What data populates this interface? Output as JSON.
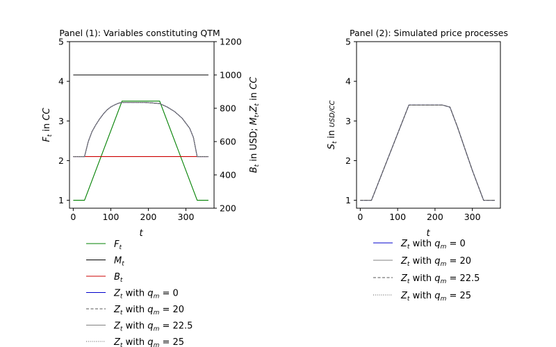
{
  "chart_data": [
    {
      "type": "line",
      "title": "Panel (1): Variables constituting QTM",
      "xlabel": "t",
      "ylabel": "F_t in CC",
      "ylabel_right": "B_t in USD; M_t,Z_t in CC",
      "xlim": [
        -10,
        375
      ],
      "ylim": [
        0.8,
        5
      ],
      "ylim_right": [
        200,
        1200
      ],
      "xticks": [
        "0",
        "100",
        "200",
        "300"
      ],
      "yticks": [
        "1",
        "2",
        "3",
        "4",
        "5"
      ],
      "yticks_right": [
        "200",
        "400",
        "600",
        "800",
        "1000",
        "1200"
      ],
      "series": [
        {
          "name": "F_t",
          "axis": "left",
          "color": "#008000",
          "style": "solid",
          "x": [
            0,
            30,
            130,
            230,
            330,
            360
          ],
          "y": [
            1,
            1,
            3.5,
            3.5,
            1,
            1
          ]
        },
        {
          "name": "M_t",
          "axis": "right",
          "color": "#000000",
          "style": "solid",
          "x": [
            0,
            360
          ],
          "y": [
            1000,
            1000
          ]
        },
        {
          "name": "B_t",
          "axis": "right",
          "color": "#cc0000",
          "style": "solid",
          "x": [
            0,
            360
          ],
          "y": [
            510,
            510
          ]
        },
        {
          "name": "Z_t with q_m = 0",
          "axis": "right",
          "color": "#0000cc",
          "style": "solid",
          "x": [
            0,
            30,
            40,
            50,
            60,
            70,
            80,
            90,
            100,
            110,
            120,
            130,
            150,
            170,
            190,
            210,
            230,
            250,
            270,
            290,
            310,
            320,
            330,
            360
          ],
          "y": [
            510,
            510,
            600,
            660,
            700,
            735,
            765,
            790,
            808,
            820,
            830,
            835,
            835,
            835,
            835,
            832,
            828,
            808,
            780,
            740,
            680,
            625,
            510,
            510
          ]
        },
        {
          "name": "Z_t with q_m = 20",
          "axis": "right",
          "color": "#555555",
          "style": "dashed",
          "x": [
            0,
            30,
            40,
            50,
            60,
            70,
            80,
            90,
            100,
            110,
            120,
            130,
            150,
            170,
            190,
            210,
            230,
            250,
            270,
            290,
            310,
            320,
            330,
            360
          ],
          "y": [
            510,
            510,
            600,
            660,
            700,
            735,
            765,
            790,
            808,
            820,
            830,
            835,
            835,
            835,
            835,
            832,
            828,
            808,
            780,
            740,
            680,
            625,
            510,
            510
          ]
        },
        {
          "name": "Z_t with q_m = 22.5",
          "axis": "right",
          "color": "#808080",
          "style": "solid",
          "x": [
            0,
            30,
            40,
            50,
            60,
            70,
            80,
            90,
            100,
            110,
            120,
            130,
            150,
            170,
            190,
            210,
            230,
            250,
            270,
            290,
            310,
            320,
            330,
            360
          ],
          "y": [
            510,
            510,
            600,
            660,
            700,
            735,
            765,
            790,
            808,
            820,
            830,
            835,
            835,
            835,
            835,
            832,
            828,
            808,
            780,
            740,
            680,
            625,
            510,
            510
          ]
        },
        {
          "name": "Z_t with q_m = 25",
          "axis": "right",
          "color": "#555555",
          "style": "dotted",
          "x": [
            0,
            30,
            40,
            50,
            60,
            70,
            80,
            90,
            100,
            110,
            120,
            130,
            150,
            170,
            190,
            210,
            230,
            250,
            270,
            290,
            310,
            320,
            330,
            360
          ],
          "y": [
            510,
            510,
            600,
            660,
            700,
            735,
            765,
            790,
            808,
            820,
            830,
            835,
            835,
            835,
            835,
            832,
            828,
            808,
            780,
            740,
            680,
            625,
            510,
            510
          ]
        }
      ],
      "legend": [
        "F_t",
        "M_t",
        "B_t",
        "Z_t with q_m = 0",
        "Z_t with q_m = 20",
        "Z_t with q_m = 22.5",
        "Z_t with q_m = 25"
      ],
      "legend_placement": "below"
    },
    {
      "type": "line",
      "title": "Panel (2): Simulated price processes",
      "xlabel": "t",
      "ylabel": "S_t in USD/CC",
      "xlim": [
        -10,
        375
      ],
      "ylim": [
        0.8,
        5
      ],
      "xticks": [
        "0",
        "100",
        "200",
        "300"
      ],
      "yticks": [
        "1",
        "2",
        "3",
        "4",
        "5"
      ],
      "series": [
        {
          "name": "Z_t with q_m = 0",
          "color": "#0000cc",
          "style": "solid",
          "x": [
            0,
            30,
            130,
            180,
            200,
            220,
            240,
            260,
            280,
            300,
            330,
            360
          ],
          "y": [
            1,
            1,
            3.4,
            3.4,
            3.4,
            3.4,
            3.35,
            2.85,
            2.3,
            1.75,
            1,
            1
          ]
        },
        {
          "name": "Z_t with q_m = 20",
          "color": "#808080",
          "style": "solid",
          "x": [
            0,
            30,
            130,
            180,
            200,
            220,
            240,
            260,
            280,
            300,
            330,
            360
          ],
          "y": [
            1,
            1,
            3.4,
            3.4,
            3.4,
            3.4,
            3.35,
            2.85,
            2.3,
            1.75,
            1,
            1
          ]
        },
        {
          "name": "Z_t with q_m = 22.5",
          "color": "#555555",
          "style": "dashed",
          "x": [
            0,
            30,
            130,
            180,
            200,
            220,
            240,
            260,
            280,
            300,
            330,
            360
          ],
          "y": [
            1,
            1,
            3.4,
            3.4,
            3.4,
            3.4,
            3.35,
            2.85,
            2.3,
            1.75,
            1,
            1
          ]
        },
        {
          "name": "Z_t with q_m = 25",
          "color": "#555555",
          "style": "dotted",
          "x": [
            0,
            30,
            130,
            180,
            200,
            220,
            240,
            260,
            280,
            300,
            330,
            360
          ],
          "y": [
            1,
            1,
            3.4,
            3.4,
            3.4,
            3.4,
            3.35,
            2.85,
            2.3,
            1.75,
            1,
            1
          ]
        }
      ],
      "legend": [
        "Z_t with q_m = 0",
        "Z_t with q_m = 20",
        "Z_t with q_m = 22.5",
        "Z_t with q_m = 25"
      ],
      "legend_placement": "below"
    }
  ]
}
